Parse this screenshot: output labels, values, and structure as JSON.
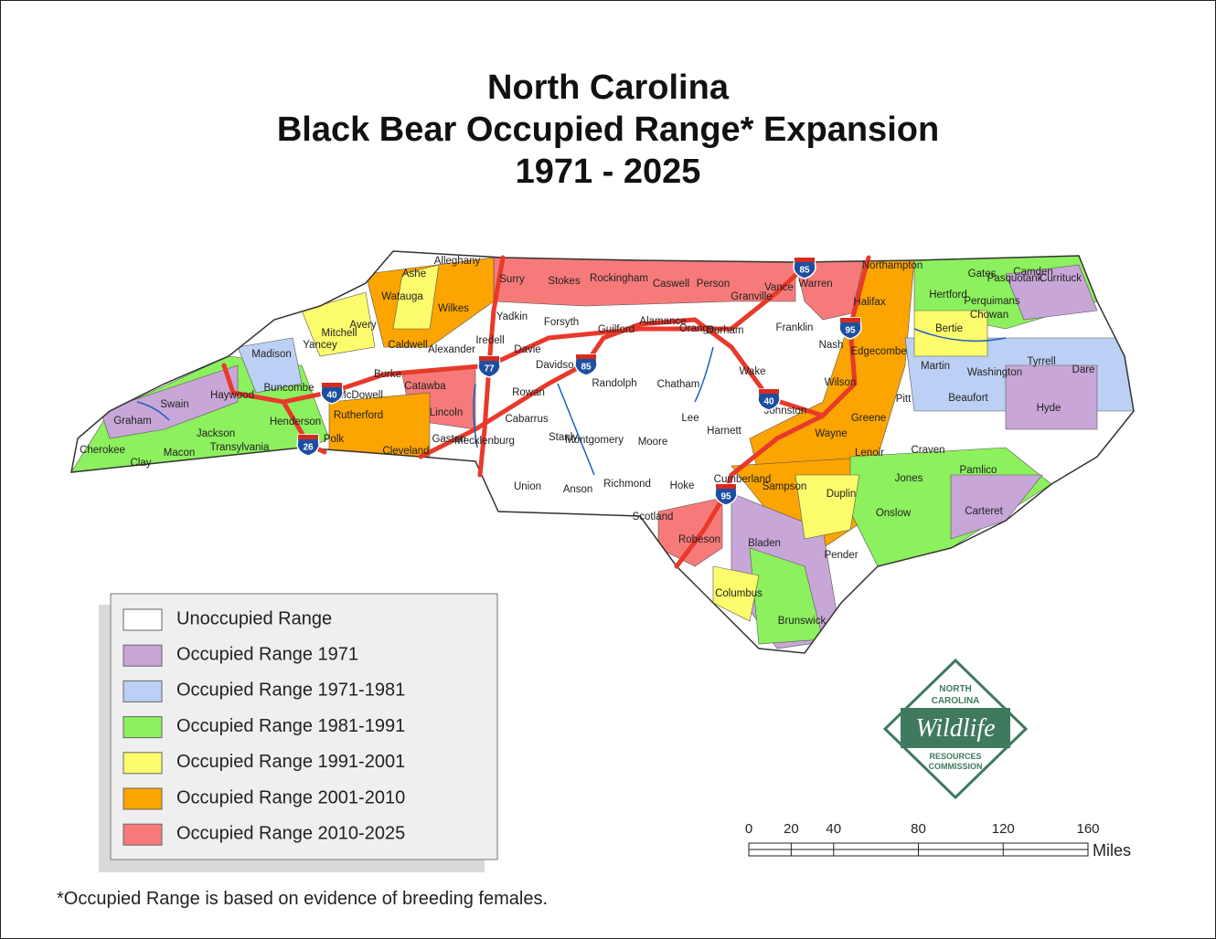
{
  "title": [
    "North Carolina",
    "Black Bear Occupied Range* Expansion",
    "1971 - 2025"
  ],
  "legend": [
    {
      "label": "Unoccupied Range",
      "color": "#ffffff"
    },
    {
      "label": "Occupied Range 1971",
      "color": "#c9a6d8"
    },
    {
      "label": "Occupied Range 1971-1981",
      "color": "#bcd0f5"
    },
    {
      "label": "Occupied Range 1981-1991",
      "color": "#8df05e"
    },
    {
      "label": "Occupied Range 1991-2001",
      "color": "#fcfc6c"
    },
    {
      "label": "Occupied Range 2001-2010",
      "color": "#fca400"
    },
    {
      "label": "Occupied Range 2010-2025",
      "color": "#f77a7a"
    }
  ],
  "footnote": "*Occupied Range is based on evidence of breeding females.",
  "counties": [
    "Ashe",
    "Alleghany",
    "Surry",
    "Stokes",
    "Rockingham",
    "Caswell",
    "Person",
    "Granville",
    "Vance",
    "Warren",
    "Northampton",
    "Gates",
    "Camden",
    "Currituck",
    "Pasquotank",
    "Perquimans",
    "Hertford",
    "Chowan",
    "Watauga",
    "Wilkes",
    "Avery",
    "Mitchell",
    "Yancey",
    "Madison",
    "Caldwell",
    "Alexander",
    "Yadkin",
    "Forsyth",
    "Guilford",
    "Alamance",
    "Orange",
    "Durham",
    "Franklin",
    "Halifax",
    "Bertie",
    "Iredell",
    "Davie",
    "Davidson",
    "Randolph",
    "Nash",
    "Edgecombe",
    "Martin",
    "Washington",
    "Tyrrell",
    "Dare",
    "Haywood",
    "Buncombe",
    "Burke",
    "McDowell",
    "Catawba",
    "Rowan",
    "Chatham",
    "Wake",
    "Wilson",
    "Pitt",
    "Beaufort",
    "Hyde",
    "Swain",
    "Graham",
    "Jackson",
    "Transylvania",
    "Henderson",
    "Rutherford",
    "Lincoln",
    "Cabarrus",
    "Lee",
    "Harnett",
    "Johnston",
    "Greene",
    "Cherokee",
    "Clay",
    "Macon",
    "Polk",
    "Cleveland",
    "Gaston",
    "Mecklenburg",
    "Stanly",
    "Montgomery",
    "Moore",
    "Wayne",
    "Lenoir",
    "Craven",
    "Pamlico",
    "Union",
    "Anson",
    "Richmond",
    "Hoke",
    "Cumberland",
    "Sampson",
    "Duplin",
    "Jones",
    "Onslow",
    "Carteret",
    "Scotland",
    "Robeson",
    "Bladen",
    "Pender",
    "Columbus",
    "Brunswick"
  ],
  "interstates": [
    "85",
    "95",
    "77",
    "85",
    "40",
    "40",
    "26",
    "95"
  ],
  "scale": {
    "ticks": [
      0,
      20,
      40,
      80,
      120,
      160
    ],
    "unit": "Miles"
  },
  "logo": [
    "NORTH",
    "CAROLINA",
    "Wildlife",
    "RESOURCES",
    "COMMISSION"
  ]
}
